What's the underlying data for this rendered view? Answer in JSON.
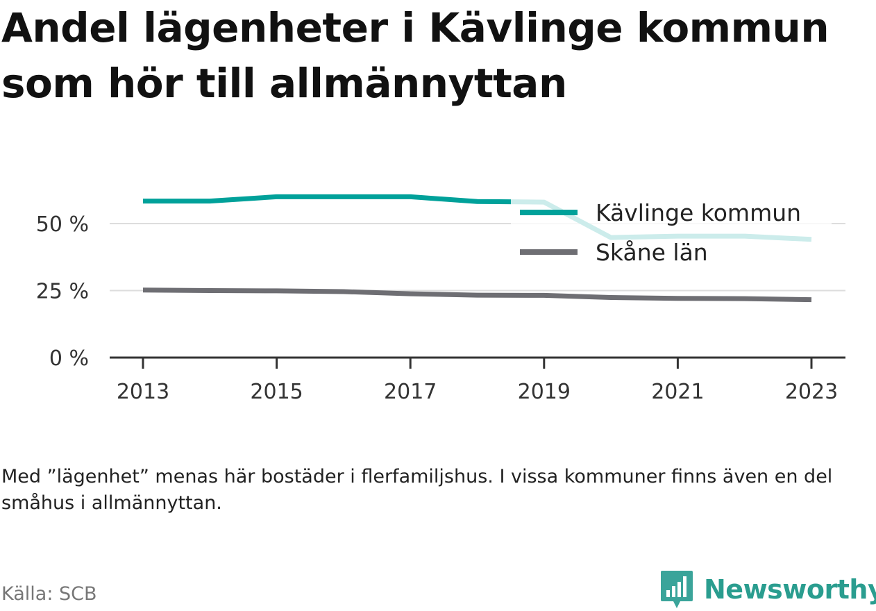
{
  "title": "Andel lägenheter i Kävlinge kommun som hör till allmännyttan",
  "chart_data": {
    "type": "line",
    "x": [
      2013,
      2014,
      2015,
      2016,
      2017,
      2018,
      2019,
      2020,
      2021,
      2022,
      2023
    ],
    "x_ticks": [
      "2013",
      "2015",
      "2017",
      "2019",
      "2021",
      "2023"
    ],
    "y_ticks": [
      "0 %",
      "25 %",
      "50 %"
    ],
    "y_tick_values": [
      0,
      25,
      50
    ],
    "ylim": [
      0,
      60
    ],
    "grid": true,
    "legend_position": "top-right",
    "series": [
      {
        "name": "Kävlinge kommun",
        "color": "#00a19a",
        "values": [
          58.4,
          58.4,
          60.0,
          60.0,
          60.0,
          58.2,
          58.0,
          44.8,
          45.3,
          45.3,
          44.1
        ]
      },
      {
        "name": "Skåne län",
        "color": "#6e6e73",
        "values": [
          25.2,
          25.0,
          24.9,
          24.6,
          23.8,
          23.3,
          23.2,
          22.4,
          22.1,
          22.0,
          21.6
        ]
      }
    ]
  },
  "note": "Med ”lägenhet” menas här bostäder i flerfamiljshus. I vissa kommuner finns även en del småhus i allmännyttan.",
  "source": "Källa: SCB",
  "brand": {
    "name": "Newsworthy",
    "icon": "bar-chart-speech-bubble-icon",
    "color": "#2a9d8f"
  }
}
